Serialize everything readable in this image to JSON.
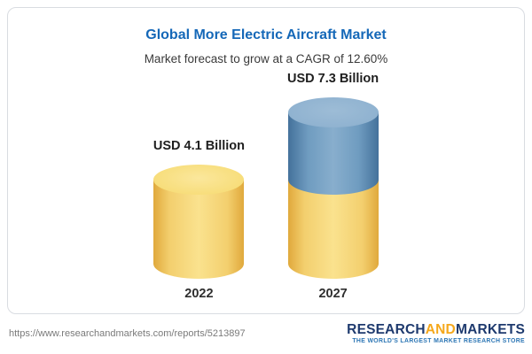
{
  "card": {
    "title": "Global More Electric Aircraft Market",
    "subtitle": "Market forecast to grow at a CAGR of 12.60%"
  },
  "chart_data": {
    "type": "bar",
    "title": "Global More Electric Aircraft Market",
    "subtitle": "Market forecast to grow at a CAGR of 12.60%",
    "categories": [
      "2022",
      "2027"
    ],
    "values": [
      4.1,
      7.3
    ],
    "value_labels": [
      "USD 4.1 Billion",
      "USD 7.3 Billion"
    ],
    "unit": "USD Billion",
    "cagr": "12.60%",
    "legend_position": "none",
    "grid": "off",
    "colors": {
      "base": "#f3cf6e",
      "growth": "#6f9cc0"
    }
  },
  "footer": {
    "url": "https://www.researchandmarkets.com/reports/5213897",
    "logo": {
      "part1": "RESEARCH",
      "part2": "AND",
      "part3": "MARKETS",
      "tagline": "THE WORLD'S LARGEST MARKET RESEARCH STORE"
    }
  }
}
